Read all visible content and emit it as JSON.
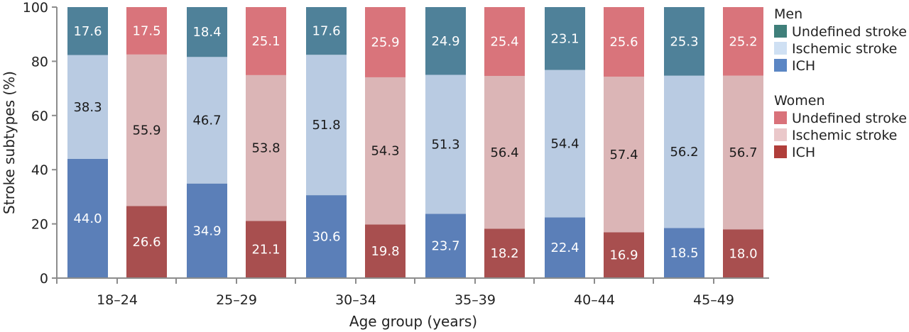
{
  "chart_data": {
    "type": "bar",
    "stacked": true,
    "title": "",
    "xlabel": "Age group (years)",
    "ylabel": "Stroke subtypes (%)",
    "ylim": [
      0,
      100
    ],
    "yticks": [
      0,
      20,
      40,
      60,
      80,
      100
    ],
    "grid": false,
    "legend_position": "right",
    "categories": [
      "18–24",
      "25–29",
      "30–34",
      "35–39",
      "40–44",
      "45–49"
    ],
    "groups": [
      {
        "name": "Men",
        "series": [
          {
            "name": "ICH",
            "color": "#5b7fb8",
            "label_color": "#ffffff",
            "values": [
              44.0,
              34.9,
              30.6,
              23.7,
              22.4,
              18.5
            ]
          },
          {
            "name": "Ischemic stroke",
            "color": "#b9cbe2",
            "label_color": "#1a1a1a",
            "values": [
              38.3,
              46.7,
              51.8,
              51.3,
              54.4,
              56.2
            ]
          },
          {
            "name": "Undefined stroke",
            "color": "#4f8199",
            "label_color": "#ffffff",
            "values": [
              17.6,
              18.4,
              17.6,
              24.9,
              23.1,
              25.3
            ]
          }
        ]
      },
      {
        "name": "Women",
        "series": [
          {
            "name": "ICH",
            "color": "#a84f4f",
            "label_color": "#ffffff",
            "values": [
              26.6,
              21.1,
              19.8,
              18.2,
              16.9,
              18.0
            ]
          },
          {
            "name": "Ischemic stroke",
            "color": "#dbb5b6",
            "label_color": "#1a1a1a",
            "values": [
              55.9,
              53.8,
              54.3,
              56.4,
              57.4,
              56.7
            ]
          },
          {
            "name": "Undefined stroke",
            "color": "#d9747b",
            "label_color": "#ffffff",
            "values": [
              17.5,
              25.1,
              25.9,
              25.4,
              25.6,
              25.2
            ]
          }
        ]
      }
    ],
    "legend": [
      {
        "title": "Men",
        "items": [
          {
            "label": "Undefined stroke",
            "color": "#3f7f7a"
          },
          {
            "label": "Ischemic stroke",
            "color": "#cfe0f3"
          },
          {
            "label": "ICH",
            "color": "#5b86c4"
          }
        ]
      },
      {
        "title": "Women",
        "items": [
          {
            "label": "Undefined stroke",
            "color": "#d9727a"
          },
          {
            "label": "Ischemic stroke",
            "color": "#eac8ca"
          },
          {
            "label": "ICH",
            "color": "#b03e3a"
          }
        ]
      }
    ]
  }
}
